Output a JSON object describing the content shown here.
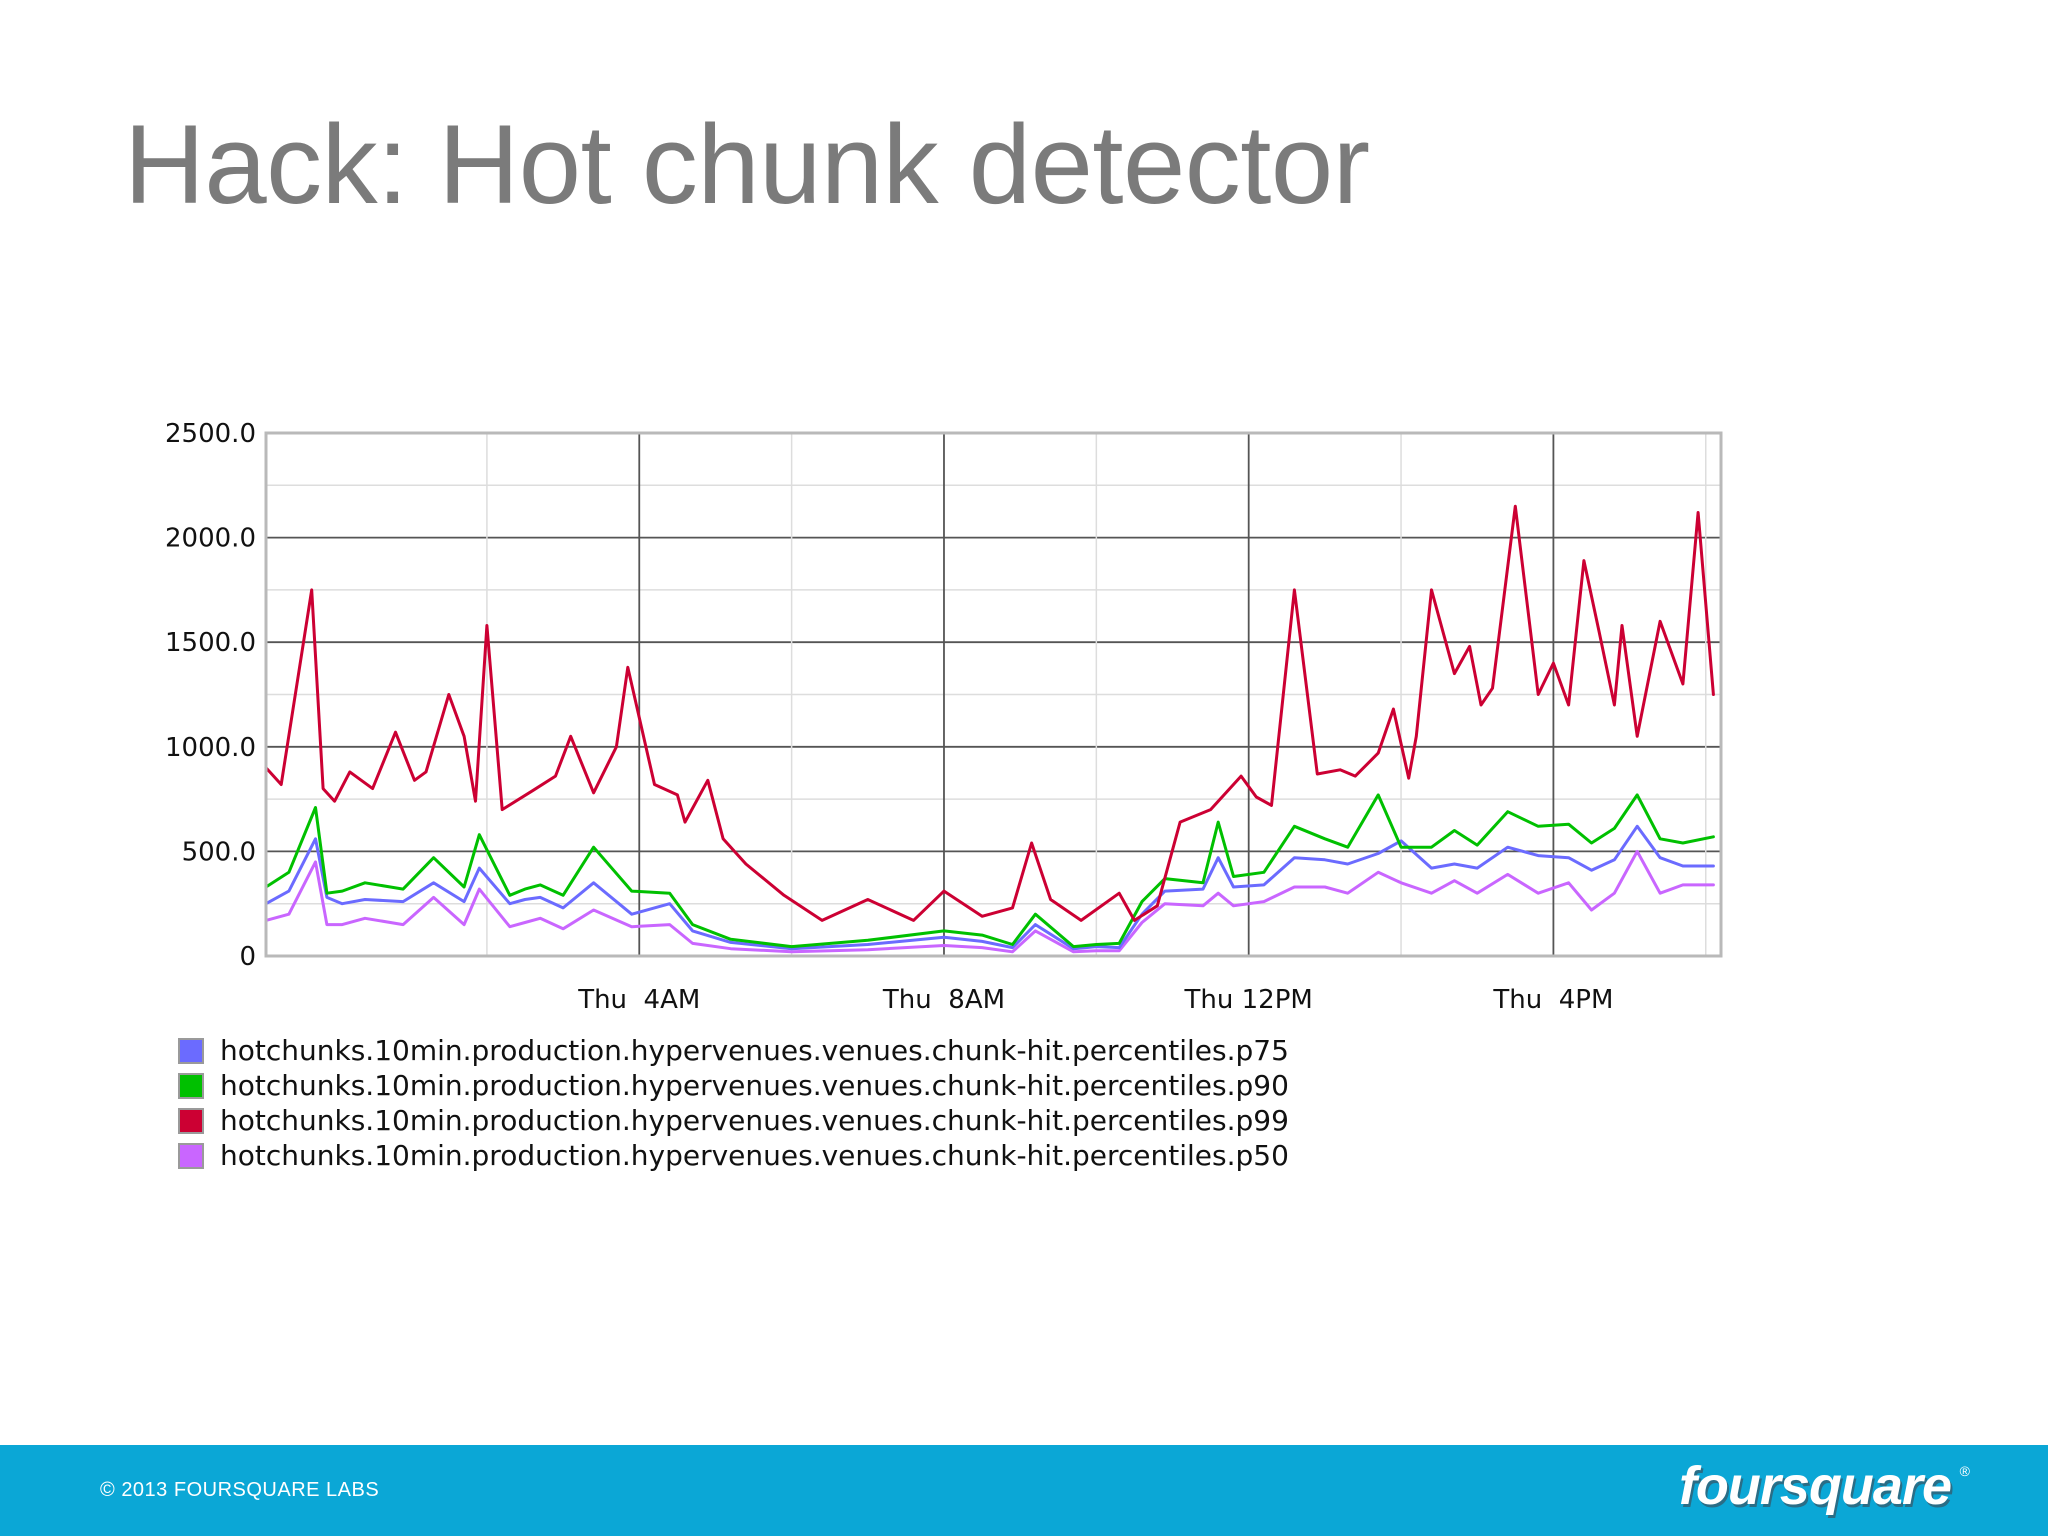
{
  "slide": {
    "title": "Hack: Hot chunk detector"
  },
  "chart_data": {
    "type": "line",
    "title": "",
    "xlabel": "",
    "ylabel": "",
    "ylim": [
      0,
      2500
    ],
    "y_ticks": [
      "2500.0",
      "2000.0",
      "1500.0",
      "1000.0",
      "500.0",
      "0"
    ],
    "x_ticks": [
      "Thu  4AM",
      "Thu  8AM",
      "Thu 12PM",
      "Thu  4PM"
    ],
    "x_range_hours": [
      -0.9,
      18.2
    ],
    "grid": true,
    "legend_placement": "bottom-left",
    "series": [
      {
        "name": "hotchunks.10min.production.hypervenues.venues.chunk-hit.percentiles.p75",
        "color": "#6b6bff",
        "hours": [
          -0.9,
          -0.6,
          -0.25,
          -0.1,
          0.1,
          0.4,
          0.9,
          1.3,
          1.7,
          1.9,
          2.3,
          2.5,
          2.7,
          3.0,
          3.4,
          3.9,
          4.4,
          4.7,
          5.2,
          6.0,
          7.0,
          8.0,
          8.5,
          8.9,
          9.2,
          9.7,
          10.0,
          10.3,
          10.6,
          10.9,
          11.4,
          11.6,
          11.8,
          12.2,
          12.6,
          13.0,
          13.3,
          13.7,
          14.0,
          14.4,
          14.7,
          15.0,
          15.4,
          15.8,
          16.2,
          16.5,
          16.8,
          17.1,
          17.4,
          17.7,
          18.1
        ],
        "values": [
          250,
          310,
          560,
          280,
          250,
          270,
          260,
          350,
          260,
          420,
          250,
          270,
          280,
          230,
          350,
          200,
          250,
          120,
          65,
          35,
          55,
          90,
          70,
          40,
          150,
          35,
          45,
          40,
          200,
          310,
          320,
          470,
          330,
          340,
          470,
          460,
          440,
          490,
          550,
          420,
          440,
          420,
          520,
          480,
          470,
          410,
          460,
          620,
          470,
          430,
          430
        ]
      },
      {
        "name": "hotchunks.10min.production.hypervenues.venues.chunk-hit.percentiles.p90",
        "color": "#00c000",
        "hours": [
          -0.9,
          -0.6,
          -0.25,
          -0.1,
          0.1,
          0.4,
          0.9,
          1.3,
          1.7,
          1.9,
          2.3,
          2.5,
          2.7,
          3.0,
          3.4,
          3.9,
          4.4,
          4.7,
          5.2,
          6.0,
          7.0,
          8.0,
          8.5,
          8.9,
          9.2,
          9.7,
          10.0,
          10.3,
          10.6,
          10.9,
          11.4,
          11.6,
          11.8,
          12.2,
          12.6,
          13.0,
          13.3,
          13.7,
          14.0,
          14.4,
          14.7,
          15.0,
          15.4,
          15.8,
          16.2,
          16.5,
          16.8,
          17.1,
          17.4,
          17.7,
          18.1
        ],
        "values": [
          330,
          400,
          710,
          300,
          310,
          350,
          320,
          470,
          330,
          580,
          290,
          320,
          340,
          290,
          520,
          310,
          300,
          150,
          80,
          45,
          75,
          120,
          100,
          55,
          200,
          45,
          55,
          60,
          260,
          370,
          350,
          640,
          380,
          400,
          620,
          560,
          520,
          770,
          520,
          520,
          600,
          530,
          690,
          620,
          630,
          540,
          610,
          770,
          560,
          540,
          570
        ]
      },
      {
        "name": "hotchunks.10min.production.hypervenues.venues.chunk-hit.percentiles.p99",
        "color": "#cc0033",
        "hours": [
          -0.9,
          -0.7,
          -0.3,
          -0.15,
          0.0,
          0.2,
          0.5,
          0.8,
          1.05,
          1.2,
          1.5,
          1.7,
          1.85,
          2.0,
          2.2,
          2.6,
          2.9,
          3.1,
          3.4,
          3.7,
          3.85,
          4.2,
          4.5,
          4.6,
          4.9,
          5.1,
          5.4,
          5.9,
          6.4,
          7.0,
          7.6,
          8.0,
          8.5,
          8.9,
          9.15,
          9.4,
          9.8,
          10.3,
          10.5,
          10.8,
          11.1,
          11.5,
          11.9,
          12.1,
          12.3,
          12.6,
          12.9,
          13.2,
          13.4,
          13.7,
          13.9,
          14.1,
          14.2,
          14.4,
          14.7,
          14.9,
          15.05,
          15.2,
          15.5,
          15.8,
          16.0,
          16.2,
          16.4,
          16.6,
          16.8,
          16.9,
          17.1,
          17.4,
          17.7,
          17.9,
          18.1
        ],
        "values": [
          900,
          820,
          1750,
          800,
          740,
          880,
          800,
          1070,
          840,
          880,
          1250,
          1050,
          740,
          1580,
          700,
          790,
          860,
          1050,
          780,
          1000,
          1380,
          820,
          770,
          640,
          840,
          560,
          440,
          290,
          170,
          270,
          170,
          310,
          190,
          230,
          540,
          270,
          170,
          300,
          170,
          240,
          640,
          700,
          860,
          760,
          720,
          1750,
          870,
          890,
          860,
          970,
          1180,
          850,
          1050,
          1750,
          1350,
          1480,
          1200,
          1280,
          2150,
          1250,
          1400,
          1200,
          1890,
          1550,
          1200,
          1580,
          1050,
          1600,
          1300,
          2120,
          1250
        ]
      },
      {
        "name": "hotchunks.10min.production.hypervenues.venues.chunk-hit.percentiles.p50",
        "color": "#c966ff",
        "hours": [
          -0.9,
          -0.6,
          -0.25,
          -0.1,
          0.1,
          0.4,
          0.9,
          1.3,
          1.7,
          1.9,
          2.3,
          2.5,
          2.7,
          3.0,
          3.4,
          3.9,
          4.4,
          4.7,
          5.2,
          6.0,
          7.0,
          8.0,
          8.5,
          8.9,
          9.2,
          9.7,
          10.0,
          10.3,
          10.6,
          10.9,
          11.4,
          11.6,
          11.8,
          12.2,
          12.6,
          13.0,
          13.3,
          13.7,
          14.0,
          14.4,
          14.7,
          15.0,
          15.4,
          15.8,
          16.2,
          16.5,
          16.8,
          17.1,
          17.4,
          17.7,
          18.1
        ],
        "values": [
          170,
          200,
          450,
          150,
          150,
          180,
          150,
          280,
          150,
          320,
          140,
          160,
          180,
          130,
          220,
          140,
          150,
          60,
          35,
          20,
          30,
          50,
          40,
          20,
          120,
          20,
          25,
          25,
          160,
          250,
          240,
          300,
          240,
          260,
          330,
          330,
          300,
          400,
          350,
          300,
          360,
          300,
          390,
          300,
          350,
          220,
          300,
          500,
          300,
          340,
          340
        ]
      }
    ]
  },
  "footer": {
    "copyright_symbol": "©",
    "copyright": "2013 FOURSQUARE LABS",
    "brand": "foursquare",
    "registered": "®"
  }
}
